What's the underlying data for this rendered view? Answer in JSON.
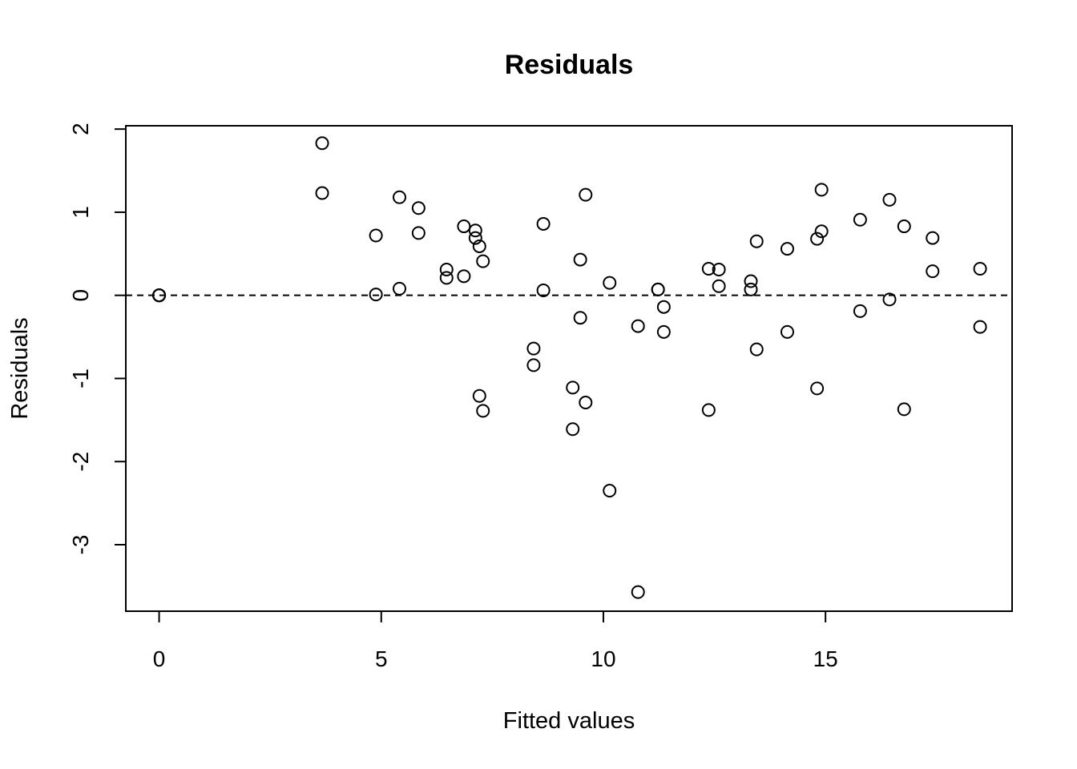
{
  "chart_data": {
    "type": "scatter",
    "title": "Residuals",
    "xlabel": "Fitted values",
    "ylabel": "Residuals",
    "xlim": [
      -0.75,
      19.2
    ],
    "ylim": [
      -3.8,
      2.04
    ],
    "x_ticks": [
      0,
      5,
      10,
      15
    ],
    "y_ticks": [
      -3,
      -2,
      -1,
      0,
      1,
      2
    ],
    "reference_line": {
      "y": 0,
      "style": "dashed"
    },
    "grid": false,
    "legend": "none",
    "marker": "open-circle",
    "points": [
      {
        "x": 0.0,
        "y": 0.0
      },
      {
        "x": 0.0,
        "y": 0.0
      },
      {
        "x": 0.0,
        "y": 0.0
      },
      {
        "x": 0.0,
        "y": 0.0
      },
      {
        "x": 3.67,
        "y": 1.83
      },
      {
        "x": 3.67,
        "y": 1.23
      },
      {
        "x": 4.88,
        "y": 0.72
      },
      {
        "x": 4.88,
        "y": 0.01
      },
      {
        "x": 5.41,
        "y": 1.18
      },
      {
        "x": 5.41,
        "y": 0.08
      },
      {
        "x": 5.84,
        "y": 1.05
      },
      {
        "x": 5.84,
        "y": 0.75
      },
      {
        "x": 6.47,
        "y": 0.31
      },
      {
        "x": 6.47,
        "y": 0.21
      },
      {
        "x": 6.86,
        "y": 0.83
      },
      {
        "x": 6.86,
        "y": 0.23
      },
      {
        "x": 7.12,
        "y": 0.78
      },
      {
        "x": 7.12,
        "y": 0.69
      },
      {
        "x": 7.21,
        "y": 0.59
      },
      {
        "x": 7.21,
        "y": -1.21
      },
      {
        "x": 7.29,
        "y": 0.41
      },
      {
        "x": 7.29,
        "y": -1.39
      },
      {
        "x": 8.43,
        "y": -0.64
      },
      {
        "x": 8.43,
        "y": -0.84
      },
      {
        "x": 8.65,
        "y": 0.86
      },
      {
        "x": 8.65,
        "y": 0.06
      },
      {
        "x": 9.31,
        "y": -1.11
      },
      {
        "x": 9.31,
        "y": -1.61
      },
      {
        "x": 9.48,
        "y": 0.43
      },
      {
        "x": 9.48,
        "y": -0.27
      },
      {
        "x": 9.6,
        "y": 1.21
      },
      {
        "x": 9.6,
        "y": -1.29
      },
      {
        "x": 10.14,
        "y": 0.15
      },
      {
        "x": 10.14,
        "y": -2.35
      },
      {
        "x": 10.78,
        "y": -0.37
      },
      {
        "x": 10.78,
        "y": -3.57
      },
      {
        "x": 11.23,
        "y": 0.07
      },
      {
        "x": 11.23,
        "y": 0.07
      },
      {
        "x": 11.36,
        "y": -0.14
      },
      {
        "x": 11.36,
        "y": -0.44
      },
      {
        "x": 12.37,
        "y": 0.32
      },
      {
        "x": 12.37,
        "y": -1.38
      },
      {
        "x": 12.6,
        "y": 0.31
      },
      {
        "x": 12.6,
        "y": 0.11
      },
      {
        "x": 13.32,
        "y": 0.17
      },
      {
        "x": 13.32,
        "y": 0.07
      },
      {
        "x": 13.45,
        "y": 0.65
      },
      {
        "x": 13.45,
        "y": -0.65
      },
      {
        "x": 14.14,
        "y": 0.56
      },
      {
        "x": 14.14,
        "y": -0.44
      },
      {
        "x": 14.81,
        "y": 0.68
      },
      {
        "x": 14.81,
        "y": -1.12
      },
      {
        "x": 14.91,
        "y": 1.27
      },
      {
        "x": 14.91,
        "y": 0.77
      },
      {
        "x": 15.78,
        "y": 0.91
      },
      {
        "x": 15.78,
        "y": -0.19
      },
      {
        "x": 16.44,
        "y": 1.15
      },
      {
        "x": 16.44,
        "y": -0.05
      },
      {
        "x": 16.77,
        "y": 0.83
      },
      {
        "x": 16.77,
        "y": -1.37
      },
      {
        "x": 17.41,
        "y": 0.69
      },
      {
        "x": 17.41,
        "y": 0.29
      },
      {
        "x": 18.48,
        "y": 0.32
      },
      {
        "x": 18.48,
        "y": -0.38
      }
    ]
  }
}
